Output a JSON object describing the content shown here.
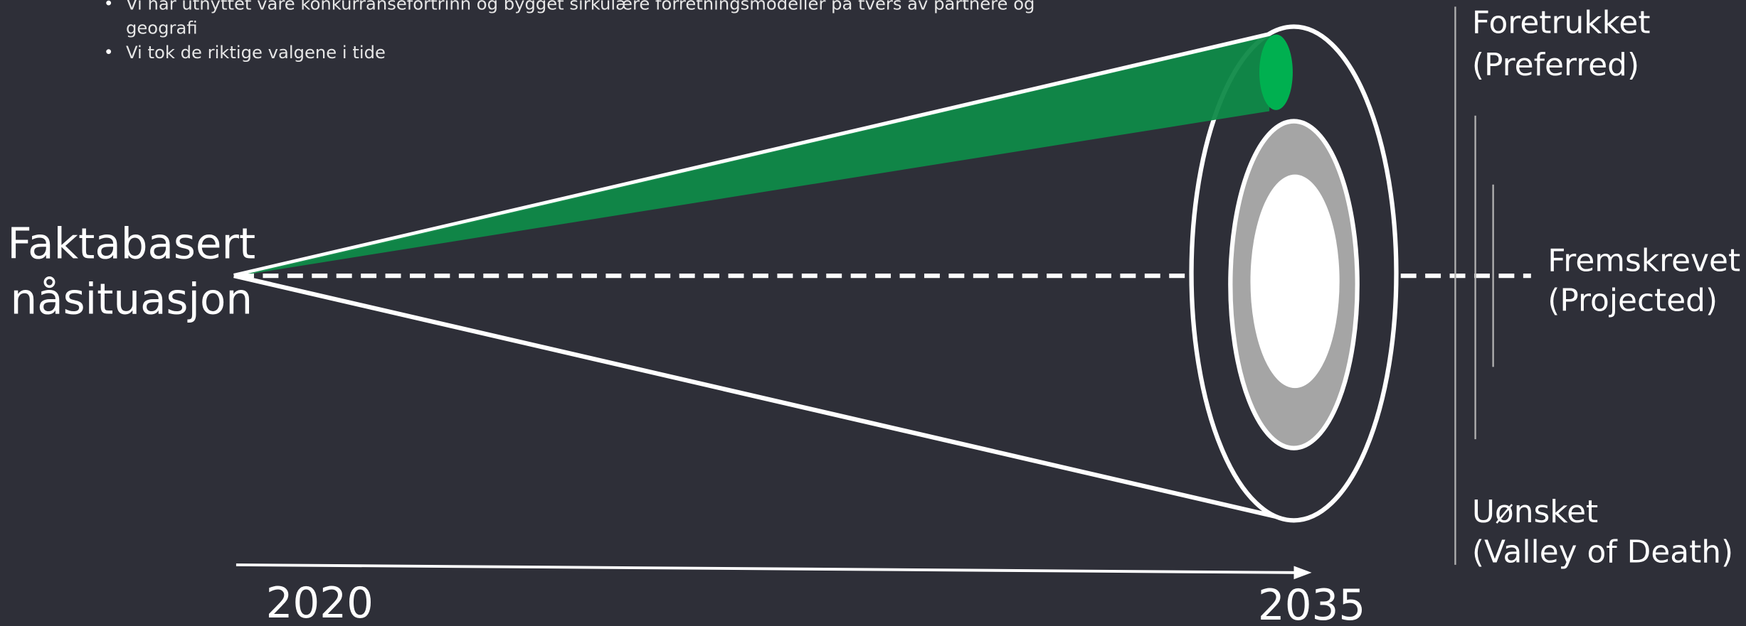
{
  "bullets": [
    {
      "lines": [
        "Vi har utnyttet våre konkurransefortrinn og bygget sirkulære forretningsmodeller på tvers av partnere og",
        "geografi"
      ]
    },
    {
      "lines": [
        "Vi tok de riktige valgene i tide"
      ]
    }
  ],
  "origin": {
    "lines": [
      "Faktabasert",
      "nåsituasjon"
    ]
  },
  "preferred": {
    "lines": [
      "Foretrukket",
      "(Preferred)"
    ]
  },
  "projected": {
    "lines": [
      "Fremskrevet",
      "(Projected)"
    ]
  },
  "undesired": {
    "lines": [
      "Uønsket",
      "(Valley of Death)"
    ]
  },
  "timeline": {
    "start": "2020",
    "end": "2035"
  }
}
